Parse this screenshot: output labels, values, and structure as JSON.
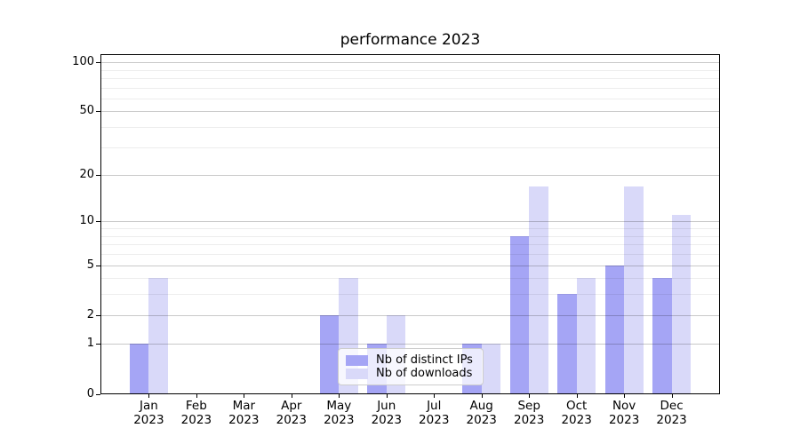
{
  "chart_data": {
    "type": "bar",
    "title": "performance 2023",
    "categories": [
      "Jan",
      "Feb",
      "Mar",
      "Apr",
      "May",
      "Jun",
      "Jul",
      "Aug",
      "Sep",
      "Oct",
      "Nov",
      "Dec"
    ],
    "x_tick_year": "2023",
    "series": [
      {
        "name": "Nb of distinct IPs",
        "color": "#a5a5f5",
        "values": [
          1,
          0,
          0,
          0,
          2,
          1,
          0,
          1,
          8,
          3,
          5,
          4
        ]
      },
      {
        "name": "Nb of downloads",
        "color": "#d9d9f9",
        "values": [
          4,
          0,
          0,
          0,
          4,
          2,
          0,
          1,
          17,
          4,
          17,
          11
        ]
      }
    ],
    "y_scale": "log10(1+y)",
    "y_major_ticks": [
      0,
      1,
      2,
      5,
      10,
      20,
      50,
      100
    ],
    "y_minor_gridlines": [
      3,
      4,
      6,
      7,
      8,
      9,
      30,
      40,
      60,
      70,
      80,
      90
    ],
    "ylim": [
      0,
      111
    ],
    "xlabel": "",
    "ylabel": "",
    "grid": "on",
    "legend_position": "lower center"
  },
  "colors": {
    "axis": "#000000",
    "major_grid": "#c9c9c9",
    "minor_grid": "#e9e9e9",
    "background": "#ffffff"
  }
}
